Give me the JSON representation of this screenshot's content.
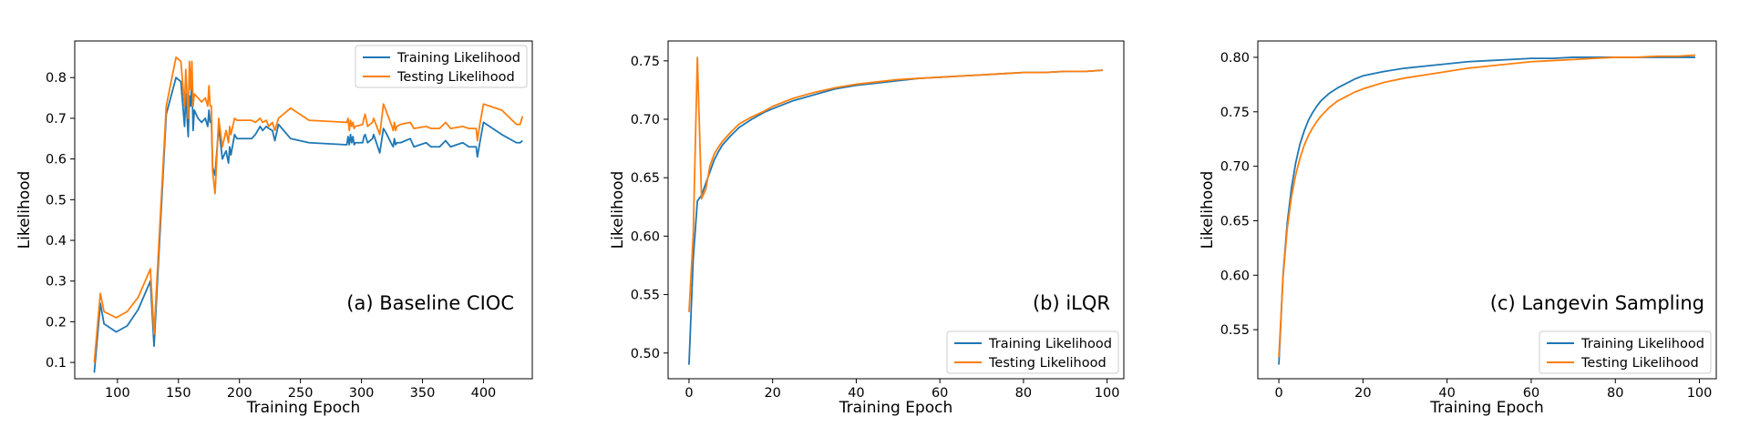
{
  "figure": {
    "panels_count": 3
  },
  "colors": {
    "training": "#1f77b4",
    "testing": "#ff7f0e",
    "axes": "#000000",
    "legend_border": "#cccccc"
  },
  "chart_data": [
    {
      "type": "line",
      "panel_title": "(a) Baseline CIOC",
      "xlabel": "Training Epoch",
      "ylabel": "Likelihood",
      "xlim": [
        65,
        440
      ],
      "ylim": [
        0.06,
        0.89
      ],
      "xticks": [
        100,
        150,
        200,
        250,
        300,
        350,
        400
      ],
      "yticks": [
        0.1,
        0.2,
        0.3,
        0.4,
        0.5,
        0.6,
        0.7,
        0.8
      ],
      "yticks_labels": [
        "0.1",
        "0.2",
        "0.3",
        "0.4",
        "0.5",
        "0.6",
        "0.7",
        "0.8"
      ],
      "grid": false,
      "legend_position": "top-right",
      "series": [
        {
          "name": "Training Likelihood",
          "x": [
            81,
            86,
            89,
            99,
            108,
            117,
            127,
            130,
            140,
            148,
            152,
            155,
            156,
            158,
            159,
            160,
            161,
            162,
            163,
            166,
            169,
            172,
            174,
            175,
            176,
            177,
            178,
            180,
            183,
            186,
            189,
            191,
            192,
            193,
            196,
            198,
            210,
            213,
            217,
            219,
            222,
            224,
            227,
            229,
            232,
            242,
            257,
            288,
            289,
            290,
            291,
            292,
            293,
            294,
            295,
            301,
            302,
            303,
            305,
            309,
            310,
            315,
            318,
            320,
            325,
            326,
            327,
            328,
            329,
            332,
            340,
            343,
            353,
            357,
            364,
            369,
            373,
            383,
            388,
            394,
            395,
            397,
            400,
            415,
            427,
            430,
            432
          ],
          "y": [
            0.075,
            0.245,
            0.195,
            0.175,
            0.19,
            0.23,
            0.3,
            0.14,
            0.71,
            0.8,
            0.79,
            0.68,
            0.76,
            0.655,
            0.755,
            0.73,
            0.8,
            0.67,
            0.72,
            0.7,
            0.69,
            0.7,
            0.68,
            0.72,
            0.69,
            0.695,
            0.58,
            0.56,
            0.68,
            0.6,
            0.62,
            0.59,
            0.63,
            0.61,
            0.66,
            0.65,
            0.65,
            0.66,
            0.68,
            0.67,
            0.68,
            0.675,
            0.67,
            0.645,
            0.685,
            0.65,
            0.64,
            0.635,
            0.655,
            0.635,
            0.66,
            0.64,
            0.655,
            0.635,
            0.64,
            0.64,
            0.655,
            0.66,
            0.64,
            0.65,
            0.66,
            0.615,
            0.675,
            0.665,
            0.635,
            0.63,
            0.65,
            0.635,
            0.64,
            0.64,
            0.65,
            0.63,
            0.64,
            0.63,
            0.63,
            0.645,
            0.63,
            0.64,
            0.63,
            0.63,
            0.605,
            0.64,
            0.69,
            0.66,
            0.64,
            0.64,
            0.645
          ]
        },
        {
          "name": "Testing Likelihood",
          "x": [
            81,
            86,
            89,
            99,
            108,
            117,
            127,
            130,
            140,
            148,
            152,
            155,
            156,
            158,
            159,
            160,
            161,
            162,
            163,
            166,
            169,
            172,
            174,
            175,
            176,
            177,
            178,
            180,
            183,
            186,
            189,
            191,
            192,
            193,
            196,
            198,
            210,
            213,
            217,
            219,
            222,
            224,
            227,
            229,
            232,
            242,
            257,
            288,
            289,
            290,
            291,
            292,
            293,
            294,
            295,
            301,
            302,
            303,
            305,
            309,
            310,
            315,
            318,
            320,
            325,
            326,
            327,
            328,
            329,
            332,
            340,
            343,
            353,
            357,
            364,
            369,
            373,
            383,
            388,
            394,
            395,
            397,
            400,
            415,
            427,
            430,
            432
          ],
          "y": [
            0.1,
            0.27,
            0.225,
            0.21,
            0.225,
            0.26,
            0.33,
            0.17,
            0.73,
            0.85,
            0.84,
            0.73,
            0.82,
            0.7,
            0.84,
            0.77,
            0.84,
            0.73,
            0.76,
            0.75,
            0.74,
            0.75,
            0.73,
            0.78,
            0.73,
            0.73,
            0.57,
            0.515,
            0.7,
            0.63,
            0.67,
            0.64,
            0.68,
            0.66,
            0.7,
            0.695,
            0.695,
            0.69,
            0.7,
            0.69,
            0.695,
            0.68,
            0.69,
            0.67,
            0.7,
            0.725,
            0.695,
            0.69,
            0.7,
            0.67,
            0.695,
            0.68,
            0.69,
            0.675,
            0.68,
            0.685,
            0.7,
            0.71,
            0.68,
            0.69,
            0.7,
            0.66,
            0.735,
            0.72,
            0.68,
            0.67,
            0.69,
            0.67,
            0.68,
            0.685,
            0.69,
            0.675,
            0.68,
            0.675,
            0.675,
            0.69,
            0.675,
            0.68,
            0.675,
            0.675,
            0.645,
            0.685,
            0.735,
            0.72,
            0.685,
            0.685,
            0.705
          ]
        }
      ]
    },
    {
      "type": "line",
      "panel_title": "(b) iLQR",
      "xlabel": "Training Epoch",
      "ylabel": "Likelihood",
      "xlim": [
        -5,
        104
      ],
      "ylim": [
        0.478,
        0.767
      ],
      "xticks": [
        0,
        20,
        40,
        60,
        80,
        100
      ],
      "yticks": [
        0.5,
        0.55,
        0.6,
        0.65,
        0.7,
        0.75
      ],
      "yticks_labels": [
        "0.50",
        "0.55",
        "0.60",
        "0.65",
        "0.70",
        "0.75"
      ],
      "grid": false,
      "legend_position": "bottom-right",
      "series": [
        {
          "name": "Training Likelihood",
          "x": [
            0,
            1,
            2,
            3,
            4,
            5,
            6,
            7,
            8,
            10,
            12,
            15,
            18,
            20,
            25,
            30,
            35,
            40,
            45,
            50,
            55,
            60,
            65,
            70,
            75,
            80,
            85,
            90,
            95,
            99
          ],
          "y": [
            0.49,
            0.58,
            0.63,
            0.635,
            0.645,
            0.655,
            0.665,
            0.672,
            0.678,
            0.686,
            0.693,
            0.7,
            0.706,
            0.709,
            0.716,
            0.721,
            0.726,
            0.729,
            0.731,
            0.733,
            0.735,
            0.736,
            0.737,
            0.738,
            0.739,
            0.74,
            0.74,
            0.741,
            0.741,
            0.742
          ]
        },
        {
          "name": "Testing Likelihood",
          "x": [
            0,
            1,
            2,
            3,
            4,
            5,
            6,
            7,
            8,
            10,
            12,
            15,
            18,
            20,
            25,
            30,
            35,
            40,
            45,
            50,
            55,
            60,
            65,
            70,
            75,
            80,
            85,
            90,
            95,
            99
          ],
          "y": [
            0.535,
            0.6,
            0.753,
            0.632,
            0.64,
            0.66,
            0.67,
            0.676,
            0.681,
            0.689,
            0.696,
            0.702,
            0.707,
            0.711,
            0.718,
            0.723,
            0.727,
            0.73,
            0.732,
            0.734,
            0.735,
            0.736,
            0.737,
            0.738,
            0.739,
            0.74,
            0.74,
            0.741,
            0.741,
            0.742
          ]
        }
      ]
    },
    {
      "type": "line",
      "panel_title": "(c) Langevin Sampling",
      "xlabel": "Training Epoch",
      "ylabel": "Likelihood",
      "xlim": [
        -5,
        104
      ],
      "ylim": [
        0.505,
        0.815
      ],
      "xticks": [
        0,
        20,
        40,
        60,
        80,
        100
      ],
      "yticks": [
        0.55,
        0.6,
        0.65,
        0.7,
        0.75,
        0.8
      ],
      "yticks_labels": [
        "0.55",
        "0.60",
        "0.65",
        "0.70",
        "0.75",
        "0.80"
      ],
      "grid": false,
      "legend_position": "bottom-right",
      "series": [
        {
          "name": "Training Likelihood",
          "x": [
            0,
            1,
            2,
            3,
            4,
            5,
            6,
            7,
            8,
            9,
            10,
            12,
            14,
            16,
            18,
            20,
            25,
            30,
            35,
            40,
            45,
            50,
            55,
            60,
            65,
            70,
            75,
            80,
            85,
            90,
            95,
            99
          ],
          "y": [
            0.518,
            0.6,
            0.648,
            0.68,
            0.703,
            0.72,
            0.732,
            0.742,
            0.749,
            0.755,
            0.76,
            0.767,
            0.772,
            0.776,
            0.78,
            0.783,
            0.787,
            0.79,
            0.792,
            0.794,
            0.796,
            0.797,
            0.798,
            0.799,
            0.799,
            0.8,
            0.8,
            0.8,
            0.8,
            0.8,
            0.8,
            0.8
          ]
        },
        {
          "name": "Testing Likelihood",
          "x": [
            0,
            1,
            2,
            3,
            4,
            5,
            6,
            7,
            8,
            9,
            10,
            12,
            14,
            16,
            18,
            20,
            25,
            30,
            35,
            40,
            45,
            50,
            55,
            60,
            65,
            70,
            75,
            80,
            85,
            90,
            95,
            99
          ],
          "y": [
            0.525,
            0.598,
            0.643,
            0.672,
            0.692,
            0.707,
            0.719,
            0.728,
            0.735,
            0.741,
            0.746,
            0.754,
            0.76,
            0.764,
            0.768,
            0.771,
            0.777,
            0.781,
            0.784,
            0.787,
            0.79,
            0.792,
            0.794,
            0.796,
            0.797,
            0.798,
            0.799,
            0.8,
            0.8,
            0.801,
            0.801,
            0.802
          ]
        }
      ]
    }
  ]
}
